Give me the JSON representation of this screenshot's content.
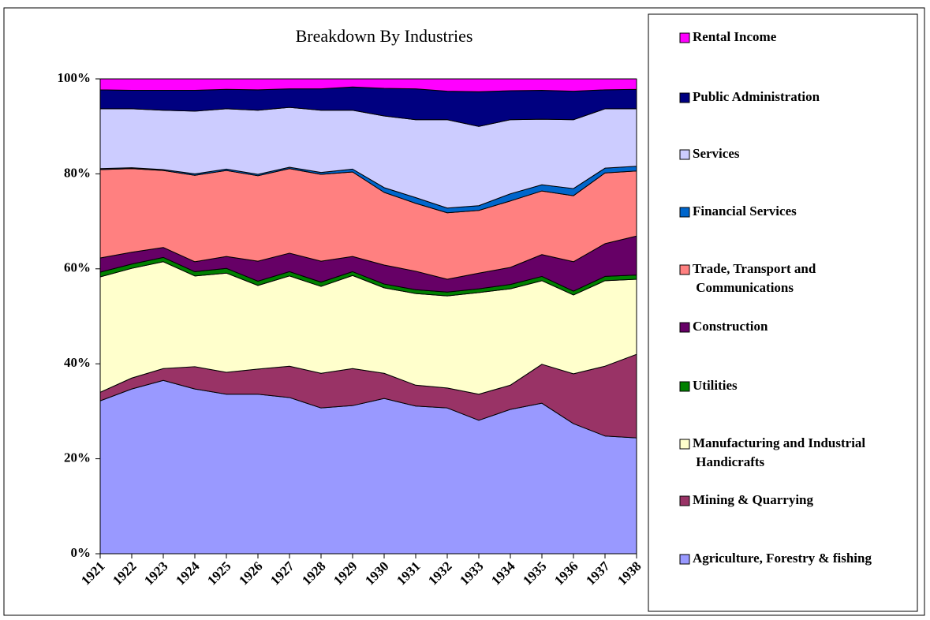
{
  "chart_data": {
    "type": "stacked_area_percent",
    "title": "Breakdown By Industries",
    "categories": [
      "1921",
      "1922",
      "1923",
      "1924",
      "1925",
      "1926",
      "1927",
      "1928",
      "1929",
      "1930",
      "1931",
      "1932",
      "1933",
      "1934",
      "1935",
      "1936",
      "1937",
      "1938"
    ],
    "ylim": [
      0,
      100
    ],
    "yticks": [
      {
        "value": 0,
        "label": "0%"
      },
      {
        "value": 20,
        "label": "20%"
      },
      {
        "value": 40,
        "label": "40%"
      },
      {
        "value": 60,
        "label": "60%"
      },
      {
        "value": 80,
        "label": "80%"
      },
      {
        "value": 100,
        "label": "100%"
      }
    ],
    "grid": false,
    "legend": "right",
    "series": [
      {
        "name": "Agriculture, Forestry & fishing",
        "color": "#9999ff",
        "values": [
          32.2,
          34.7,
          36.5,
          34.7,
          33.6,
          33.6,
          32.9,
          30.7,
          31.2,
          32.7,
          31.1,
          30.7,
          28.1,
          30.4,
          31.7,
          27.4,
          24.8,
          24.4
        ]
      },
      {
        "name": "Mining & Quarrying",
        "color": "#993366",
        "values": [
          1.8,
          2.3,
          2.5,
          4.7,
          4.6,
          5.3,
          6.6,
          7.3,
          7.8,
          5.3,
          4.4,
          4.2,
          5.5,
          5.1,
          8.2,
          10.5,
          14.7,
          17.6
        ]
      },
      {
        "name": "Manufacturing and Industrial Handicrafts",
        "color": "#ffffcc",
        "values": [
          24.3,
          23.1,
          22.5,
          19.1,
          20.9,
          17.6,
          19.0,
          18.3,
          19.6,
          18.0,
          19.3,
          19.4,
          21.4,
          20.3,
          17.6,
          16.6,
          18.0,
          15.8
        ]
      },
      {
        "name": "Utilities",
        "color": "#008000",
        "values": [
          1.0,
          0.9,
          0.9,
          0.9,
          1.0,
          0.9,
          0.9,
          0.9,
          0.8,
          0.8,
          0.8,
          0.8,
          0.8,
          0.9,
          0.9,
          0.8,
          0.9,
          0.9
        ]
      },
      {
        "name": "Construction",
        "color": "#660066",
        "values": [
          3.0,
          2.5,
          2.1,
          2.1,
          2.5,
          4.2,
          3.9,
          4.4,
          3.2,
          4.0,
          3.9,
          2.7,
          3.3,
          3.6,
          4.6,
          6.2,
          6.9,
          8.2
        ]
      },
      {
        "name": "Trade, Transport and Communications",
        "color": "#ff8080",
        "values": [
          18.6,
          17.6,
          16.2,
          18.2,
          18.1,
          18.0,
          17.8,
          18.3,
          17.8,
          15.3,
          14.3,
          14.0,
          13.2,
          14.0,
          13.4,
          13.9,
          14.9,
          13.7
        ]
      },
      {
        "name": "Financial Services",
        "color": "#0066cc",
        "values": [
          0.2,
          0.2,
          0.2,
          0.3,
          0.3,
          0.3,
          0.3,
          0.4,
          0.6,
          1.0,
          1.2,
          1.0,
          1.0,
          1.5,
          1.3,
          1.5,
          1.0,
          1.0
        ]
      },
      {
        "name": "Services",
        "color": "#ccccff",
        "values": [
          12.6,
          12.4,
          12.5,
          13.2,
          12.7,
          13.5,
          12.6,
          13.1,
          12.4,
          15.1,
          16.4,
          18.6,
          16.7,
          15.6,
          13.8,
          14.5,
          12.5,
          12.1
        ]
      },
      {
        "name": "Public Administration",
        "color": "#000080",
        "values": [
          4.0,
          3.9,
          4.2,
          4.4,
          4.1,
          4.3,
          3.9,
          4.5,
          4.9,
          5.8,
          6.5,
          6.0,
          7.3,
          6.1,
          6.1,
          6.0,
          4.0,
          4.1
        ]
      },
      {
        "name": "Rental Income",
        "color": "#ff00ff",
        "values": [
          2.3,
          2.4,
          2.4,
          2.4,
          2.2,
          2.3,
          2.1,
          2.1,
          1.7,
          2.0,
          2.1,
          2.6,
          2.7,
          2.5,
          2.4,
          2.6,
          2.3,
          2.2
        ]
      }
    ]
  }
}
